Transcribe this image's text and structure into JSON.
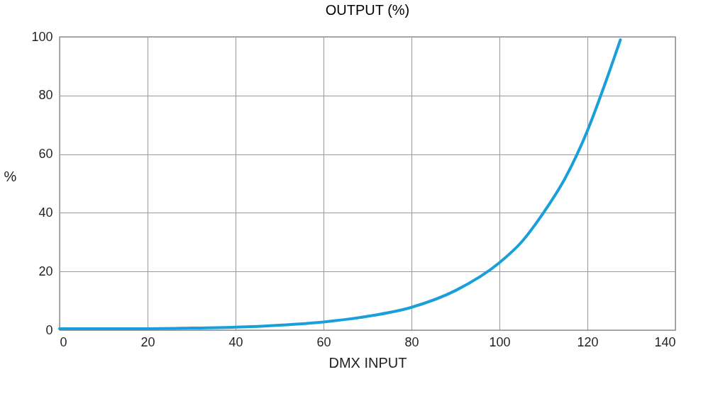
{
  "chart_data": {
    "type": "line",
    "title": "OUTPUT (%)",
    "xlabel": "DMX INPUT",
    "ylabel": "%",
    "x": [
      0,
      10,
      20,
      30,
      40,
      50,
      60,
      70,
      80,
      90,
      100,
      105,
      110,
      115,
      120,
      124,
      127.5
    ],
    "series": [
      {
        "color": "#1a9fdb",
        "values": [
          0.5,
          0.5,
          0.5,
          0.7,
          1,
          1.7,
          2.8,
          4.7,
          7.8,
          13.5,
          23,
          30,
          40,
          52,
          68,
          84,
          99
        ]
      }
    ],
    "xlim": [
      0,
      140
    ],
    "xticks": [
      0,
      20,
      40,
      60,
      80,
      100,
      120,
      140
    ],
    "ylim": [
      0,
      100
    ],
    "yticks": [
      0,
      20,
      40,
      60,
      80,
      100
    ],
    "grid": true,
    "marker": "none",
    "line_style": "solid"
  }
}
